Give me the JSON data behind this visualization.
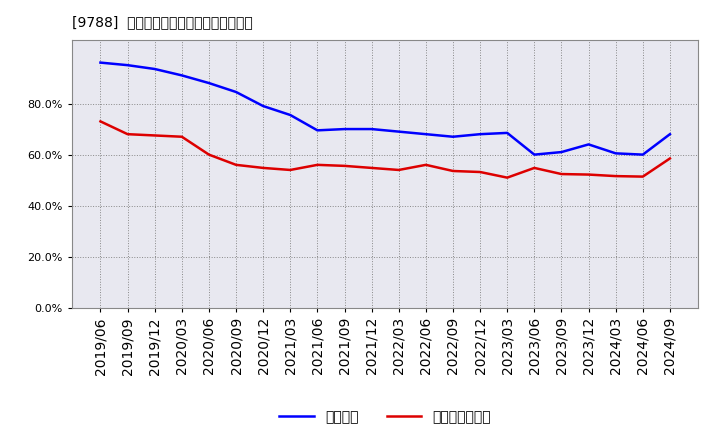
{
  "title": "[9788]  固定比率、固定長期適合率の推移",
  "blue_label": "固定比率",
  "red_label": "固定長期適合率",
  "blue_color": "#0000ff",
  "red_color": "#dd0000",
  "background_color": "#ffffff",
  "plot_bg_color": "#e8e8f0",
  "grid_color": "#aaaaaa",
  "ylim": [
    0.0,
    1.05
  ],
  "yticks": [
    0.0,
    0.2,
    0.4,
    0.6,
    0.8
  ],
  "dates": [
    "2019/06",
    "2019/09",
    "2019/12",
    "2020/03",
    "2020/06",
    "2020/09",
    "2020/12",
    "2021/03",
    "2021/06",
    "2021/09",
    "2021/12",
    "2022/03",
    "2022/06",
    "2022/09",
    "2022/12",
    "2023/03",
    "2023/06",
    "2023/09",
    "2023/12",
    "2024/03",
    "2024/06",
    "2024/09"
  ],
  "blue_values": [
    0.96,
    0.95,
    0.935,
    0.91,
    0.88,
    0.845,
    0.79,
    0.755,
    0.695,
    0.7,
    0.7,
    0.69,
    0.68,
    0.67,
    0.68,
    0.685,
    0.6,
    0.61,
    0.64,
    0.605,
    0.6,
    0.68
  ],
  "red_values": [
    0.73,
    0.68,
    0.675,
    0.67,
    0.6,
    0.56,
    0.548,
    0.54,
    0.56,
    0.556,
    0.548,
    0.54,
    0.56,
    0.536,
    0.532,
    0.51,
    0.548,
    0.524,
    0.522,
    0.516,
    0.514,
    0.585
  ]
}
